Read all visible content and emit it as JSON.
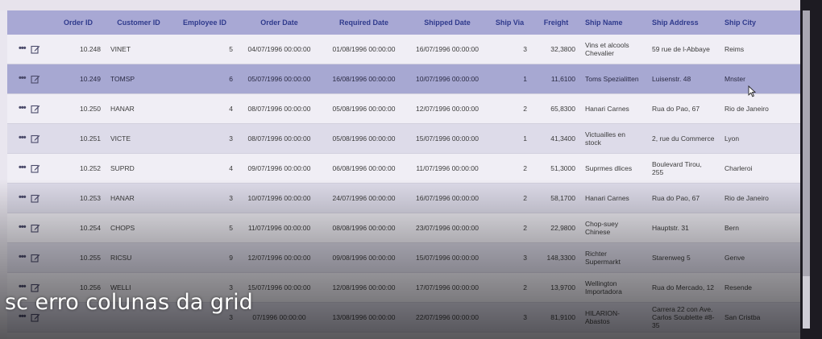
{
  "caption": "sc erro colunas da grid",
  "grid": {
    "headers": [
      "",
      "Order ID",
      "Customer ID",
      "Employee ID",
      "Order Date",
      "Required Date",
      "Shipped Date",
      "Ship Via",
      "Freight",
      "Ship Name",
      "Ship Address",
      "Ship City"
    ],
    "rows": [
      {
        "order_id": "10.248",
        "customer_id": "VINET",
        "employee_id": "5",
        "order_date": "04/07/1996 00:00:00",
        "required_date": "01/08/1996 00:00:00",
        "shipped_date": "16/07/1996 00:00:00",
        "ship_via": "3",
        "freight": "32,3800",
        "ship_name": "Vins et alcools Chevalier",
        "ship_address": "59 rue de l-Abbaye",
        "ship_city": "Reims"
      },
      {
        "order_id": "10.249",
        "customer_id": "TOMSP",
        "employee_id": "6",
        "order_date": "05/07/1996 00:00:00",
        "required_date": "16/08/1996 00:00:00",
        "shipped_date": "10/07/1996 00:00:00",
        "ship_via": "1",
        "freight": "11,6100",
        "ship_name": "Toms Spezialitten",
        "ship_address": "Luisenstr. 48",
        "ship_city": "Mnster"
      },
      {
        "order_id": "10.250",
        "customer_id": "HANAR",
        "employee_id": "4",
        "order_date": "08/07/1996 00:00:00",
        "required_date": "05/08/1996 00:00:00",
        "shipped_date": "12/07/1996 00:00:00",
        "ship_via": "2",
        "freight": "65,8300",
        "ship_name": "Hanari Carnes",
        "ship_address": "Rua do Pao, 67",
        "ship_city": "Rio de Janeiro"
      },
      {
        "order_id": "10.251",
        "customer_id": "VICTE",
        "employee_id": "3",
        "order_date": "08/07/1996 00:00:00",
        "required_date": "05/08/1996 00:00:00",
        "shipped_date": "15/07/1996 00:00:00",
        "ship_via": "1",
        "freight": "41,3400",
        "ship_name": "Victuailles en stock",
        "ship_address": "2, rue du Commerce",
        "ship_city": "Lyon"
      },
      {
        "order_id": "10.252",
        "customer_id": "SUPRD",
        "employee_id": "4",
        "order_date": "09/07/1996 00:00:00",
        "required_date": "06/08/1996 00:00:00",
        "shipped_date": "11/07/1996 00:00:00",
        "ship_via": "2",
        "freight": "51,3000",
        "ship_name": "Suprmes dlices",
        "ship_address": "Boulevard Tirou, 255",
        "ship_city": "Charleroi"
      },
      {
        "order_id": "10.253",
        "customer_id": "HANAR",
        "employee_id": "3",
        "order_date": "10/07/1996 00:00:00",
        "required_date": "24/07/1996 00:00:00",
        "shipped_date": "16/07/1996 00:00:00",
        "ship_via": "2",
        "freight": "58,1700",
        "ship_name": "Hanari Carnes",
        "ship_address": "Rua do Pao, 67",
        "ship_city": "Rio de Janeiro"
      },
      {
        "order_id": "10.254",
        "customer_id": "CHOPS",
        "employee_id": "5",
        "order_date": "11/07/1996 00:00:00",
        "required_date": "08/08/1996 00:00:00",
        "shipped_date": "23/07/1996 00:00:00",
        "ship_via": "2",
        "freight": "22,9800",
        "ship_name": "Chop-suey Chinese",
        "ship_address": "Hauptstr. 31",
        "ship_city": "Bern"
      },
      {
        "order_id": "10.255",
        "customer_id": "RICSU",
        "employee_id": "9",
        "order_date": "12/07/1996 00:00:00",
        "required_date": "09/08/1996 00:00:00",
        "shipped_date": "15/07/1996 00:00:00",
        "ship_via": "3",
        "freight": "148,3300",
        "ship_name": "Richter Supermarkt",
        "ship_address": "Starenweg 5",
        "ship_city": "Genve"
      },
      {
        "order_id": "10.256",
        "customer_id": "WELLI",
        "employee_id": "3",
        "order_date": "15/07/1996 00:00:00",
        "required_date": "12/08/1996 00:00:00",
        "shipped_date": "17/07/1996 00:00:00",
        "ship_via": "2",
        "freight": "13,9700",
        "ship_name": "Wellington Importadora",
        "ship_address": "Rua do Mercado, 12",
        "ship_city": "Resende"
      },
      {
        "order_id": "",
        "customer_id": "",
        "employee_id": "3",
        "order_date": "07/1996 00:00:00",
        "required_date": "13/08/1996 00:00:00",
        "shipped_date": "22/07/1996 00:00:00",
        "ship_via": "3",
        "freight": "81,9100",
        "ship_name": "HILARION-Abastos",
        "ship_address": "Carrera 22 con Ave. Carlos Soublette #8-35",
        "ship_city": "San Cristba"
      }
    ],
    "selected_row": 1
  },
  "icons": {
    "row_menu": "more-dots-icon",
    "row_edit": "edit-icon",
    "cursor": "mouse-cursor-icon"
  },
  "colors": {
    "header_bg": "#a8a8d4",
    "header_text": "#2f3a8c",
    "selected_row_bg": "#a7a8d2"
  }
}
